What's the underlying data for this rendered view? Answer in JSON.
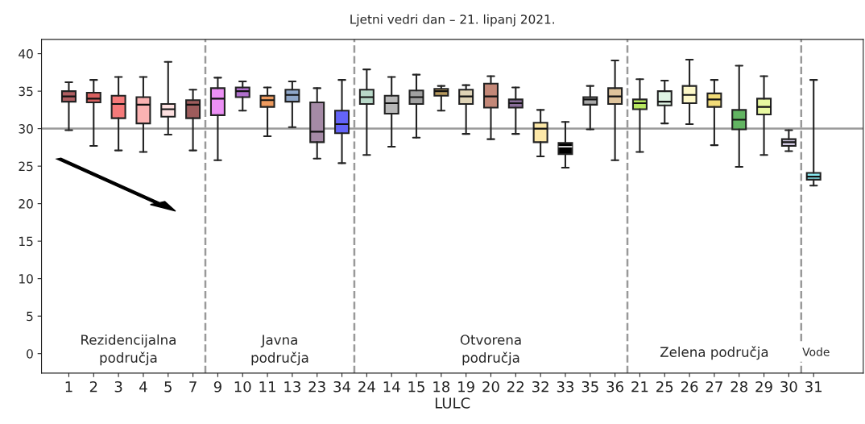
{
  "chart_data": {
    "type": "box",
    "title": "Ljetni vedri dan – 21. lipanj 2021.",
    "xlabel": "LULC",
    "categories": [
      "1",
      "2",
      "3",
      "4",
      "5",
      "7",
      "9",
      "10",
      "11",
      "13",
      "23",
      "34",
      "24",
      "14",
      "15",
      "18",
      "19",
      "20",
      "22",
      "32",
      "33",
      "35",
      "36",
      "21",
      "25",
      "26",
      "27",
      "28",
      "29",
      "30",
      "31"
    ],
    "colors": [
      "#b05f62",
      "#d9605f",
      "#f57a7a",
      "#fbb2b2",
      "#fde0e0",
      "#9e5c5c",
      "#ec90f5",
      "#b070cc",
      "#ee9a5e",
      "#8ea6c8",
      "#a58aa6",
      "#6464f8",
      "#b8d8c8",
      "#b8b8b8",
      "#a0a0a0",
      "#b89a5e",
      "#dfd3b6",
      "#c48878",
      "#8a6e9a",
      "#fde8a8",
      "#000000",
      "#a8a8a8",
      "#dfc49c",
      "#b8e860",
      "#e0f4e4",
      "#fdf8c8",
      "#f2dc78",
      "#62b462",
      "#e8f8a0",
      "#d0c8e0",
      "#88e8f0"
    ],
    "boxes": [
      {
        "low": 29.8,
        "q1": 33.6,
        "median": 34.3,
        "q3": 35.0,
        "high": 36.2
      },
      {
        "low": 27.7,
        "q1": 33.5,
        "median": 34.0,
        "q3": 34.8,
        "high": 36.5
      },
      {
        "low": 27.1,
        "q1": 31.4,
        "median": 33.3,
        "q3": 34.4,
        "high": 36.9
      },
      {
        "low": 26.9,
        "q1": 30.7,
        "median": 33.2,
        "q3": 34.2,
        "high": 36.9
      },
      {
        "low": 29.2,
        "q1": 31.6,
        "median": 32.6,
        "q3": 33.3,
        "high": 38.9
      },
      {
        "low": 27.1,
        "q1": 31.4,
        "median": 33.2,
        "q3": 33.8,
        "high": 35.2
      },
      {
        "low": 25.8,
        "q1": 31.8,
        "median": 34.0,
        "q3": 35.4,
        "high": 36.8
      },
      {
        "low": 32.4,
        "q1": 34.2,
        "median": 35.0,
        "q3": 35.5,
        "high": 36.3
      },
      {
        "low": 29.0,
        "q1": 32.9,
        "median": 33.8,
        "q3": 34.4,
        "high": 35.5
      },
      {
        "low": 30.2,
        "q1": 33.6,
        "median": 34.5,
        "q3": 35.2,
        "high": 36.3
      },
      {
        "low": 26.0,
        "q1": 28.2,
        "median": 29.6,
        "q3": 33.5,
        "high": 35.4
      },
      {
        "low": 25.4,
        "q1": 29.4,
        "median": 30.6,
        "q3": 32.4,
        "high": 36.5
      },
      {
        "low": 26.5,
        "q1": 33.3,
        "median": 34.2,
        "q3": 35.2,
        "high": 37.9
      },
      {
        "low": 27.6,
        "q1": 32.0,
        "median": 33.4,
        "q3": 34.4,
        "high": 36.9
      },
      {
        "low": 28.8,
        "q1": 33.3,
        "median": 34.2,
        "q3": 35.1,
        "high": 37.2
      },
      {
        "low": 32.4,
        "q1": 34.4,
        "median": 35.0,
        "q3": 35.3,
        "high": 35.7
      },
      {
        "low": 29.3,
        "q1": 33.3,
        "median": 34.3,
        "q3": 35.2,
        "high": 35.8
      },
      {
        "low": 28.6,
        "q1": 32.8,
        "median": 34.3,
        "q3": 36.0,
        "high": 37.0
      },
      {
        "low": 29.3,
        "q1": 32.8,
        "median": 33.4,
        "q3": 33.9,
        "high": 35.5
      },
      {
        "low": 26.3,
        "q1": 28.2,
        "median": 30.0,
        "q3": 30.8,
        "high": 32.5
      },
      {
        "low": 24.8,
        "q1": 26.6,
        "median": 27.6,
        "q3": 28.1,
        "high": 30.9
      },
      {
        "low": 29.9,
        "q1": 33.2,
        "median": 33.9,
        "q3": 34.2,
        "high": 35.7
      },
      {
        "low": 25.8,
        "q1": 33.3,
        "median": 34.3,
        "q3": 35.4,
        "high": 39.1
      },
      {
        "low": 26.9,
        "q1": 32.6,
        "median": 33.4,
        "q3": 33.9,
        "high": 36.6
      },
      {
        "low": 30.7,
        "q1": 33.1,
        "median": 33.6,
        "q3": 35.0,
        "high": 36.4
      },
      {
        "low": 30.6,
        "q1": 33.4,
        "median": 34.5,
        "q3": 35.7,
        "high": 39.2
      },
      {
        "low": 27.8,
        "q1": 32.9,
        "median": 33.9,
        "q3": 34.7,
        "high": 36.5
      },
      {
        "low": 24.9,
        "q1": 29.9,
        "median": 31.2,
        "q3": 32.5,
        "high": 38.4
      },
      {
        "low": 26.5,
        "q1": 31.9,
        "median": 32.9,
        "q3": 34.0,
        "high": 37.0
      },
      {
        "low": 27.0,
        "q1": 27.7,
        "median": 28.2,
        "q3": 28.6,
        "high": 29.8
      },
      {
        "low": 22.4,
        "q1": 23.2,
        "median": 23.6,
        "q3": 24.1,
        "high": 36.5
      }
    ],
    "ylim": [
      -2.6,
      41.9
    ],
    "yticks": [
      0,
      5,
      10,
      15,
      20,
      25,
      30,
      35,
      40
    ],
    "grid": false,
    "ref_lines": [
      {
        "axis": "y",
        "value": 30,
        "color": "#999999",
        "line_style": "solid"
      }
    ],
    "annotations": [
      "Rezidencijalna\npodručja",
      "Javna\npodručja",
      "Otvorena\npodručja",
      "Zelena područja",
      "Vode"
    ]
  }
}
